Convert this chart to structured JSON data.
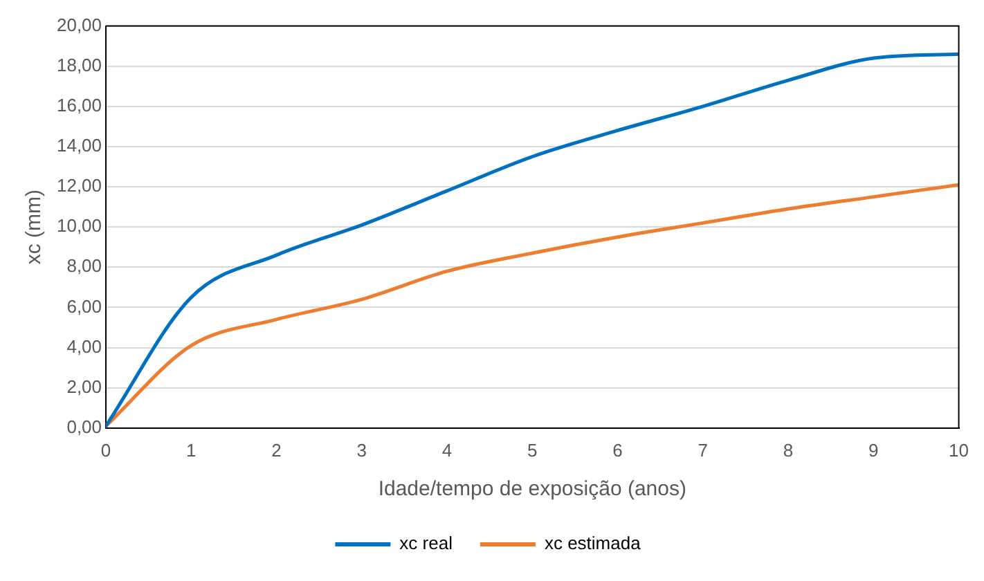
{
  "chart_data": {
    "type": "line",
    "xlabel": "Idade/tempo de exposição (anos)",
    "ylabel": "xc (mm)",
    "x": [
      0,
      1,
      2,
      3,
      4,
      5,
      6,
      7,
      8,
      9,
      10
    ],
    "series": [
      {
        "name": "xc real",
        "color": "#0070c0",
        "values": [
          0.1,
          6.5,
          8.6,
          10.1,
          11.8,
          13.5,
          14.8,
          16.0,
          17.3,
          18.4,
          18.6
        ]
      },
      {
        "name": "xc estimada",
        "color": "#ed7d31",
        "values": [
          0.1,
          4.1,
          5.4,
          6.4,
          7.8,
          8.7,
          9.5,
          10.2,
          10.9,
          11.5,
          12.1
        ]
      }
    ],
    "xlim": [
      0,
      10
    ],
    "xticks": [
      0,
      1,
      2,
      3,
      4,
      5,
      6,
      7,
      8,
      9,
      10
    ],
    "ylim": [
      0,
      20
    ],
    "yticks": [
      {
        "value": 0,
        "label": "0,00"
      },
      {
        "value": 2,
        "label": "2,00"
      },
      {
        "value": 4,
        "label": "4,00"
      },
      {
        "value": 6,
        "label": "6,00"
      },
      {
        "value": 8,
        "label": "8,00"
      },
      {
        "value": 10,
        "label": "10,00"
      },
      {
        "value": 12,
        "label": "12,00"
      },
      {
        "value": 14,
        "label": "14,00"
      },
      {
        "value": 16,
        "label": "16,00"
      },
      {
        "value": 18,
        "label": "18,00"
      },
      {
        "value": 20,
        "label": "20,00"
      }
    ],
    "grid": "y",
    "legend": "bottom",
    "marker": "none",
    "line_style": "solid"
  }
}
